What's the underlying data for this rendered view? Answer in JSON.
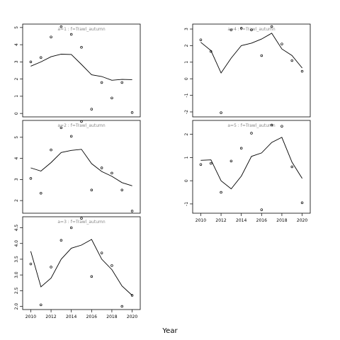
{
  "chart_data": {
    "type": "line",
    "xlabel": "Year",
    "panels": [
      {
        "title": "a=1  :  f=Trawl_autumn",
        "ylim": [
          -0.2,
          5.2
        ],
        "yticks": [
          0,
          1,
          2,
          3,
          4,
          5
        ],
        "show_xticks": false,
        "observed": {
          "x": [
            2010,
            2011,
            2012,
            2013,
            2014,
            2015,
            2016,
            2017,
            2018,
            2019,
            2020
          ],
          "y": [
            3.0,
            3.25,
            4.45,
            5.05,
            4.6,
            3.85,
            0.25,
            1.8,
            0.9,
            1.8,
            0.05
          ]
        },
        "fitted": {
          "x": [
            2010,
            2011,
            2012,
            2013,
            2014,
            2015,
            2016,
            2017,
            2018,
            2019,
            2020
          ],
          "y": [
            2.75,
            3.0,
            3.3,
            3.45,
            3.43,
            2.85,
            2.25,
            2.15,
            1.93,
            1.98,
            1.97
          ]
        }
      },
      {
        "title": "a=2  :  f=Trawl_autumn",
        "ylim": [
          1.4,
          5.8
        ],
        "yticks": [
          2,
          3,
          4,
          5
        ],
        "show_xticks": false,
        "observed": {
          "x": [
            2010,
            2011,
            2012,
            2013,
            2014,
            2015,
            2016,
            2017,
            2018,
            2019,
            2020
          ],
          "y": [
            3.05,
            2.35,
            4.4,
            5.45,
            5.05,
            5.75,
            2.5,
            3.55,
            3.3,
            2.5,
            1.5
          ]
        },
        "fitted": {
          "x": [
            2010,
            2011,
            2012,
            2013,
            2014,
            2015,
            2016,
            2017,
            2018,
            2019,
            2020
          ],
          "y": [
            3.55,
            3.4,
            3.8,
            4.28,
            4.38,
            4.43,
            3.75,
            3.38,
            3.15,
            2.85,
            2.7
          ]
        }
      },
      {
        "title": "a=3  :  f=Trawl_autumn",
        "ylim": [
          1.9,
          4.85
        ],
        "yticks": [
          2.0,
          2.5,
          3.0,
          3.5,
          4.0,
          4.5
        ],
        "yticklabels": [
          "2.0",
          "2.5",
          "3.0",
          "3.5",
          "4.0",
          "4.5"
        ],
        "show_xticks": true,
        "observed": {
          "x": [
            2010,
            2011,
            2012,
            2013,
            2014,
            2015,
            2016,
            2017,
            2018,
            2019,
            2020
          ],
          "y": [
            3.35,
            2.05,
            3.25,
            4.1,
            4.5,
            4.8,
            2.95,
            3.7,
            3.3,
            2.0,
            2.35
          ]
        },
        "fitted": {
          "x": [
            2010,
            2011,
            2012,
            2013,
            2014,
            2015,
            2016,
            2017,
            2018,
            2019,
            2020
          ],
          "y": [
            3.75,
            2.62,
            2.9,
            3.5,
            3.85,
            3.95,
            4.13,
            3.5,
            3.17,
            2.65,
            2.35
          ]
        }
      },
      {
        "title": "a=4  :  f=Trawl_autumn",
        "ylim": [
          -2.3,
          3.3
        ],
        "yticks": [
          -2,
          -1,
          0,
          1,
          2,
          3
        ],
        "show_xticks": false,
        "observed": {
          "x": [
            2010,
            2011,
            2012,
            2013,
            2014,
            2015,
            2016,
            2017,
            2018,
            2019,
            2020
          ],
          "y": [
            2.35,
            1.65,
            -2.05,
            2.95,
            3.05,
            2.95,
            1.4,
            3.15,
            2.1,
            1.1,
            0.45
          ]
        },
        "fitted": {
          "x": [
            2010,
            2011,
            2012,
            2013,
            2014,
            2015,
            2016,
            2017,
            2018,
            2019,
            2020
          ],
          "y": [
            2.2,
            1.7,
            0.35,
            1.25,
            2.0,
            2.15,
            2.4,
            2.75,
            1.8,
            1.4,
            0.65
          ]
        }
      },
      {
        "title": "a=5  :  f=Trawl_autumn",
        "ylim": [
          -1.4,
          2.6
        ],
        "yticks": [
          -1,
          0,
          1,
          2
        ],
        "show_xticks": true,
        "observed": {
          "x": [
            2010,
            2011,
            2012,
            2013,
            2014,
            2015,
            2016,
            2017,
            2018,
            2019,
            2020
          ],
          "y": [
            0.7,
            0.75,
            -0.5,
            0.85,
            1.4,
            2.05,
            -1.25,
            2.4,
            2.35,
            0.6,
            -0.95
          ]
        },
        "fitted": {
          "x": [
            2010,
            2011,
            2012,
            2013,
            2014,
            2015,
            2016,
            2017,
            2018,
            2019,
            2020
          ],
          "y": [
            0.88,
            0.9,
            0.0,
            -0.35,
            0.2,
            1.05,
            1.2,
            1.65,
            1.87,
            0.8,
            0.1
          ]
        }
      }
    ],
    "xticks": [
      2010,
      2012,
      2014,
      2016,
      2018,
      2020
    ],
    "xlim": [
      2009.2,
      2020.8
    ]
  }
}
